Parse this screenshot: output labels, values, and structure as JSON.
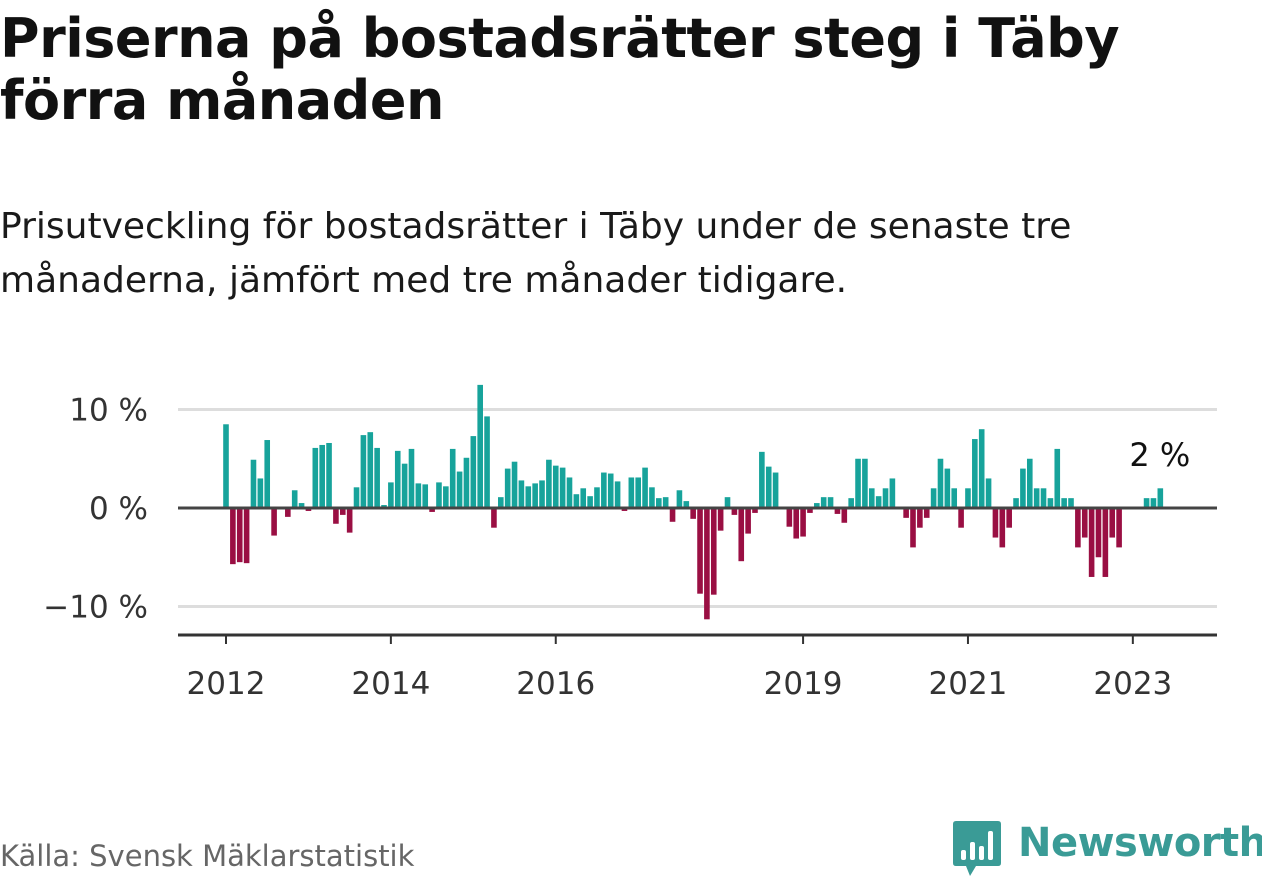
{
  "title": "Priserna på bostadsrätter steg i Täby förra månaden",
  "subtitle": "Prisutveckling för bostadsrätter i Täby under de senaste tre månaderna, jämfört med tre månader tidigare.",
  "source": "Källa: Svensk Mäklarstatistik",
  "logo_text": "Newsworthy",
  "colors": {
    "positive": "#17a39b",
    "negative": "#9a0f43",
    "grid": "#dddddd",
    "axis": "#333333",
    "logo": "#3a9b96"
  },
  "chart_data": {
    "type": "bar",
    "title": "Priserna på bostadsrätter steg i Täby förra månaden",
    "xlabel": "",
    "ylabel": "",
    "ylim": [
      -13,
      10
    ],
    "yticks": [
      -10,
      0,
      10
    ],
    "ytick_labels": [
      "−10 %",
      "0 %",
      "10 %"
    ],
    "xticks": [
      {
        "label": "2012",
        "index": 0
      },
      {
        "label": "2014",
        "index": 24
      },
      {
        "label": "2016",
        "index": 48
      },
      {
        "label": "2019",
        "index": 84
      },
      {
        "label": "2021",
        "index": 108
      },
      {
        "label": "2023",
        "index": 132
      }
    ],
    "start": "2012-01",
    "annotation": {
      "label": "2 %",
      "index": 136
    },
    "values": [
      8.5,
      -5.7,
      -5.5,
      -5.6,
      4.9,
      3.0,
      6.9,
      -2.8,
      0.0,
      -0.9,
      1.8,
      0.5,
      -0.3,
      6.1,
      6.4,
      6.6,
      -1.6,
      -0.7,
      -2.5,
      2.1,
      7.4,
      7.7,
      6.1,
      0.3,
      2.6,
      5.8,
      4.5,
      6.0,
      2.5,
      2.4,
      -0.4,
      2.6,
      2.2,
      6.0,
      3.7,
      5.1,
      7.3,
      12.5,
      9.3,
      -2.0,
      1.1,
      4.0,
      4.7,
      2.8,
      2.2,
      2.5,
      2.8,
      4.9,
      4.3,
      4.1,
      3.1,
      1.4,
      2.0,
      1.2,
      2.1,
      3.6,
      3.5,
      2.7,
      -0.3,
      3.1,
      3.1,
      4.1,
      2.1,
      1.0,
      1.1,
      -1.4,
      1.8,
      0.7,
      -1.1,
      -8.7,
      -11.3,
      -8.8,
      -2.3,
      1.1,
      -0.7,
      -5.4,
      -2.6,
      -0.5,
      5.7,
      4.2,
      3.6,
      0.0,
      -1.9,
      -3.1,
      -2.9,
      -0.5,
      0.5,
      1.1,
      1.1,
      -0.6,
      -1.5,
      1.0,
      5.0,
      5.0,
      2.0,
      1.2,
      2.0,
      3.0,
      0.0,
      -1.0,
      -4.0,
      -2.0,
      -1.0,
      2.0,
      5.0,
      4.0,
      2.0,
      -2.0,
      2.0,
      7.0,
      8.0,
      3.0,
      -3.0,
      -4.0,
      -2.0,
      1.0,
      4.0,
      5.0,
      2.0,
      2.0,
      1.0,
      6.0,
      1.0,
      1.0,
      -4.0,
      -3.0,
      -7.0,
      -5.0,
      -7.0,
      -3.0,
      -4.0,
      0.0,
      0.0,
      0.0,
      1.0,
      1.0,
      2.0
    ]
  }
}
